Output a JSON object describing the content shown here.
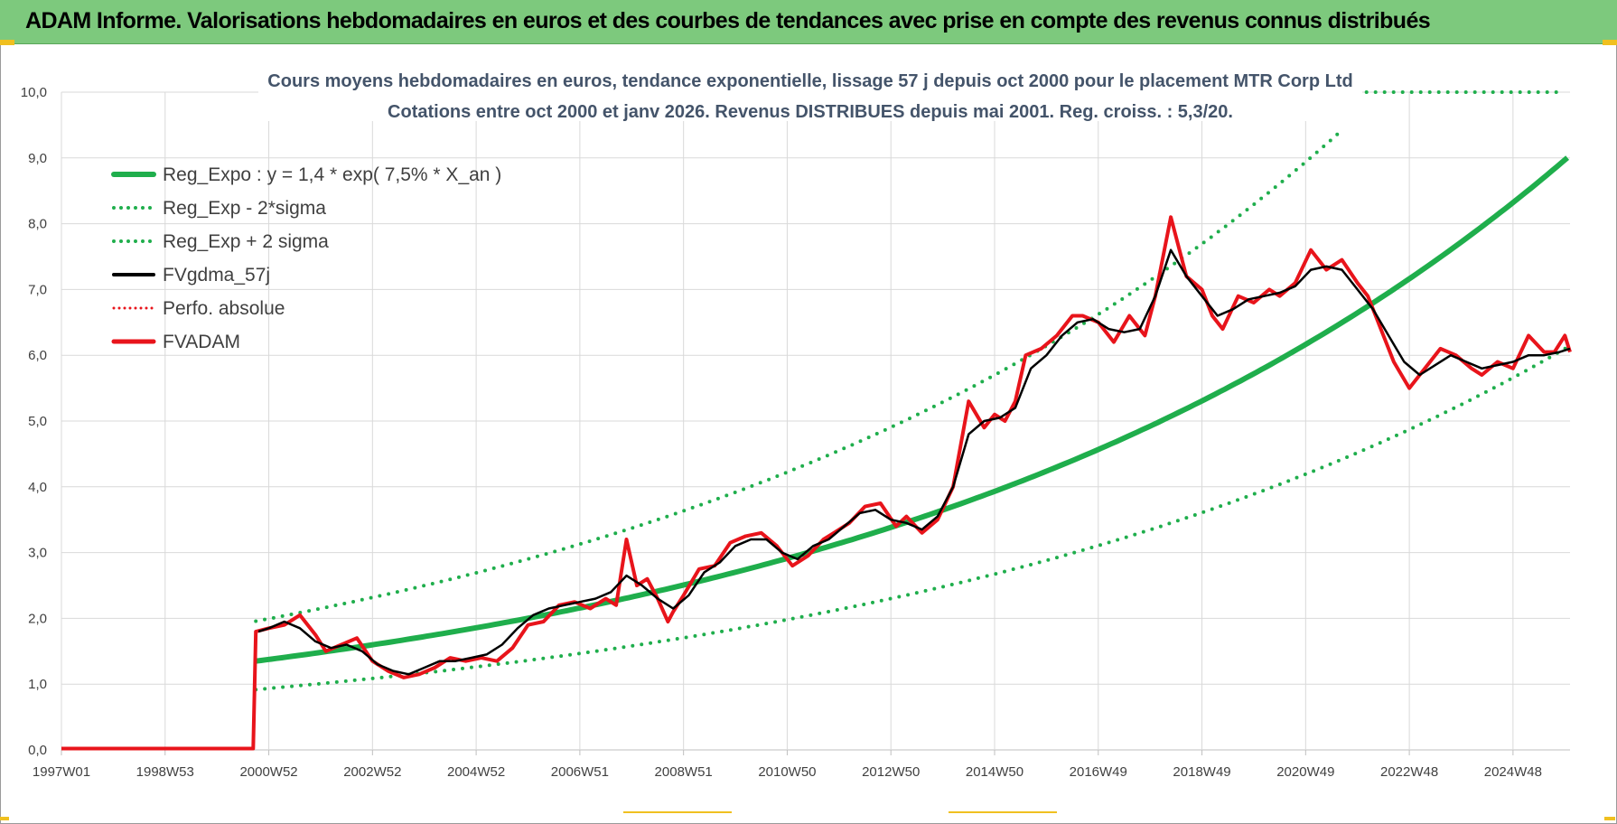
{
  "header": {
    "title": "ADAM Informe. Valorisations hebdomadaires en euros et des courbes de tendances avec prise en compte des revenus connus distribués"
  },
  "colors": {
    "header_bg": "#7dc97d",
    "green": "#1fae4c",
    "dotted_green": "#1fae4c",
    "black": "#000000",
    "red": "#e8141b"
  },
  "chart_data": {
    "type": "line",
    "title_lines": [
      "Cours moyens hebdomadaires en euros, tendance exponentielle, lissage 57 j depuis oct 2000 pour le placement MTR Corp Ltd",
      "Cotations entre oct 2000 et janv 2026. Revenus DISTRIBUES depuis mai 2001. Reg. croiss. : 5,3/20."
    ],
    "x_ticks": [
      "1997W01",
      "1998W53",
      "2000W52",
      "2002W52",
      "2004W52",
      "2006W51",
      "2008W51",
      "2010W50",
      "2012W50",
      "2014W50",
      "2016W49",
      "2018W49",
      "2020W49",
      "2022W48",
      "2024W48"
    ],
    "x_tick_years": [
      1997.0,
      1999.0,
      2001.0,
      2003.0,
      2005.0,
      2007.0,
      2009.0,
      2011.0,
      2013.0,
      2015.0,
      2017.0,
      2019.0,
      2021.0,
      2023.0,
      2025.0
    ],
    "xlim": [
      1997.0,
      2026.1
    ],
    "y_ticks": [
      "0,0",
      "1,0",
      "2,0",
      "3,0",
      "4,0",
      "5,0",
      "6,0",
      "7,0",
      "8,0",
      "9,0",
      "10,0"
    ],
    "ylim": [
      0,
      10
    ],
    "grid": true,
    "legend_position": "top-left",
    "legend": [
      {
        "name": "Reg_Expo : y = 1,4 * exp( 7,5% *  X_an )",
        "style": "solid-green"
      },
      {
        "name": "Reg_Exp - 2*sigma",
        "style": "dotted-green"
      },
      {
        "name": "Reg_Exp + 2 sigma",
        "style": "dotted-green"
      },
      {
        "name": "FVgdma_57j",
        "style": "solid-black"
      },
      {
        "name": "Perfo. absolue",
        "style": "dotted-red"
      },
      {
        "name": "FVADAM",
        "style": "solid-red"
      }
    ],
    "regression": {
      "start_year": 2000.75,
      "start_value": 1.35,
      "rate": 0.075,
      "lower_factor": 0.68,
      "upper_factor": 1.45,
      "upper_cap": 10.0,
      "end_year": 2026.1
    },
    "series": [
      {
        "name": "FVADAM",
        "x": [
          1997.0,
          2000.7,
          2000.75,
          2001.0,
          2001.3,
          2001.6,
          2001.9,
          2002.1,
          2002.4,
          2002.7,
          2003.0,
          2003.3,
          2003.6,
          2003.9,
          2004.2,
          2004.5,
          2004.8,
          2005.1,
          2005.4,
          2005.7,
          2006.0,
          2006.3,
          2006.6,
          2006.9,
          2007.2,
          2007.5,
          2007.7,
          2007.9,
          2008.1,
          2008.3,
          2008.5,
          2008.7,
          2008.8,
          2009.0,
          2009.3,
          2009.6,
          2009.9,
          2010.2,
          2010.5,
          2010.8,
          2011.1,
          2011.4,
          2011.7,
          2011.9,
          2012.2,
          2012.5,
          2012.8,
          2013.1,
          2013.3,
          2013.6,
          2013.9,
          2014.2,
          2014.5,
          2014.8,
          2015.0,
          2015.2,
          2015.4,
          2015.6,
          2015.9,
          2016.2,
          2016.5,
          2016.7,
          2017.0,
          2017.3,
          2017.6,
          2017.9,
          2018.1,
          2018.4,
          2018.7,
          2019.0,
          2019.2,
          2019.4,
          2019.7,
          2020.0,
          2020.3,
          2020.5,
          2020.8,
          2021.1,
          2021.4,
          2021.7,
          2022.0,
          2022.2,
          2022.4,
          2022.7,
          2023.0,
          2023.3,
          2023.6,
          2023.9,
          2024.2,
          2024.4,
          2024.7,
          2025.0,
          2025.3,
          2025.6,
          2025.8,
          2026.0,
          2026.1
        ],
        "y": [
          0.02,
          0.02,
          1.8,
          1.85,
          1.9,
          2.05,
          1.75,
          1.5,
          1.6,
          1.7,
          1.35,
          1.2,
          1.1,
          1.15,
          1.25,
          1.4,
          1.35,
          1.4,
          1.35,
          1.55,
          1.9,
          1.95,
          2.2,
          2.25,
          2.15,
          2.3,
          2.2,
          3.2,
          2.5,
          2.6,
          2.3,
          1.95,
          2.1,
          2.35,
          2.75,
          2.8,
          3.15,
          3.25,
          3.3,
          3.1,
          2.8,
          2.95,
          3.2,
          3.3,
          3.45,
          3.7,
          3.75,
          3.4,
          3.55,
          3.3,
          3.5,
          4.0,
          5.3,
          4.9,
          5.1,
          5.0,
          5.3,
          6.0,
          6.1,
          6.3,
          6.6,
          6.6,
          6.5,
          6.2,
          6.6,
          6.3,
          6.9,
          8.1,
          7.2,
          7.0,
          6.6,
          6.4,
          6.9,
          6.8,
          7.0,
          6.9,
          7.1,
          7.6,
          7.3,
          7.45,
          7.1,
          6.9,
          6.5,
          5.9,
          5.5,
          5.8,
          6.1,
          6.0,
          5.8,
          5.7,
          5.9,
          5.8,
          6.3,
          6.05,
          6.05,
          6.3,
          6.05
        ]
      },
      {
        "name": "FVgdma_57j",
        "x": [
          2000.8,
          2001.0,
          2001.3,
          2001.6,
          2001.9,
          2002.2,
          2002.5,
          2002.8,
          2003.1,
          2003.4,
          2003.7,
          2004.0,
          2004.3,
          2004.6,
          2004.9,
          2005.2,
          2005.5,
          2005.8,
          2006.1,
          2006.4,
          2006.7,
          2007.0,
          2007.3,
          2007.6,
          2007.9,
          2008.2,
          2008.5,
          2008.8,
          2009.1,
          2009.4,
          2009.7,
          2010.0,
          2010.3,
          2010.6,
          2010.9,
          2011.2,
          2011.5,
          2011.8,
          2012.1,
          2012.4,
          2012.7,
          2013.0,
          2013.3,
          2013.6,
          2013.9,
          2014.2,
          2014.5,
          2014.8,
          2015.1,
          2015.4,
          2015.7,
          2016.0,
          2016.3,
          2016.6,
          2016.9,
          2017.2,
          2017.5,
          2017.8,
          2018.1,
          2018.4,
          2018.7,
          2019.0,
          2019.3,
          2019.6,
          2019.9,
          2020.2,
          2020.5,
          2020.8,
          2021.1,
          2021.4,
          2021.7,
          2022.0,
          2022.3,
          2022.6,
          2022.9,
          2023.2,
          2023.5,
          2023.8,
          2024.1,
          2024.4,
          2024.7,
          2025.0,
          2025.3,
          2025.6,
          2025.9,
          2026.1
        ],
        "y": [
          1.8,
          1.85,
          1.95,
          1.85,
          1.65,
          1.55,
          1.6,
          1.5,
          1.3,
          1.2,
          1.15,
          1.25,
          1.35,
          1.35,
          1.4,
          1.45,
          1.6,
          1.85,
          2.05,
          2.15,
          2.2,
          2.25,
          2.3,
          2.4,
          2.65,
          2.5,
          2.3,
          2.15,
          2.35,
          2.7,
          2.85,
          3.1,
          3.2,
          3.2,
          3.0,
          2.9,
          3.1,
          3.2,
          3.4,
          3.6,
          3.65,
          3.5,
          3.45,
          3.35,
          3.55,
          4.0,
          4.8,
          5.0,
          5.05,
          5.2,
          5.8,
          6.0,
          6.3,
          6.5,
          6.55,
          6.4,
          6.35,
          6.4,
          6.9,
          7.6,
          7.2,
          6.9,
          6.6,
          6.7,
          6.85,
          6.9,
          6.95,
          7.05,
          7.3,
          7.35,
          7.3,
          7.0,
          6.7,
          6.3,
          5.9,
          5.7,
          5.85,
          6.0,
          5.9,
          5.8,
          5.85,
          5.9,
          6.0,
          6.0,
          6.05,
          6.1
        ]
      }
    ]
  }
}
